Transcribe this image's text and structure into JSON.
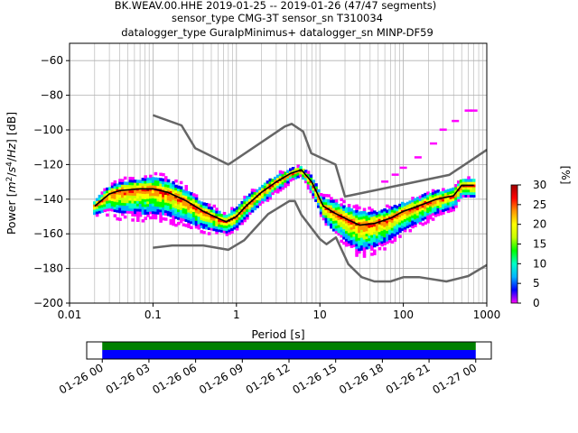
{
  "chart_data": {
    "type": "heatmap",
    "title": {
      "line1": "BK.WEAV.00.HHE   2019-01-25 -- 2019-01-26  (47/47 segments)",
      "line2": "sensor_type CMG-3T sensor_sn T310034",
      "line3": "datalogger_type GuralpMinimus+ datalogger_sn MINP-DF59"
    },
    "xlabel": "Period [s]",
    "ylabel_prefix": "Power [",
    "ylabel_suffix": "] [dB]",
    "x_scale": "log",
    "xlim": [
      0.01,
      1000
    ],
    "ylim": [
      -200,
      -50
    ],
    "x_ticks": [
      {
        "value": 0.01,
        "label": "0.01"
      },
      {
        "value": 0.1,
        "label": "0.1"
      },
      {
        "value": 1,
        "label": "1"
      },
      {
        "value": 10,
        "label": "10"
      },
      {
        "value": 100,
        "label": "100"
      },
      {
        "value": 1000,
        "label": "1000"
      }
    ],
    "y_ticks": [
      {
        "value": -60,
        "label": "−60"
      },
      {
        "value": -80,
        "label": "−80"
      },
      {
        "value": -100,
        "label": "−100"
      },
      {
        "value": -120,
        "label": "−120"
      },
      {
        "value": -140,
        "label": "−140"
      },
      {
        "value": -160,
        "label": "−160"
      },
      {
        "value": -180,
        "label": "−180"
      },
      {
        "value": -200,
        "label": "−200"
      }
    ],
    "grid": true,
    "noise_models": {
      "nhnm": [
        [
          0.1,
          -91.5
        ],
        [
          0.22,
          -97.4
        ],
        [
          0.32,
          -110.5
        ],
        [
          0.8,
          -120.0
        ],
        [
          3.8,
          -98.0
        ],
        [
          4.6,
          -96.5
        ],
        [
          6.3,
          -101.0
        ],
        [
          7.9,
          -113.5
        ],
        [
          15.4,
          -120.0
        ],
        [
          20.0,
          -138.5
        ],
        [
          354.8,
          -126.0
        ],
        [
          1000,
          -111.5
        ]
      ],
      "nlnm": [
        [
          0.1,
          -168.0
        ],
        [
          0.17,
          -166.7
        ],
        [
          0.4,
          -166.7
        ],
        [
          0.8,
          -169.2
        ],
        [
          1.24,
          -163.7
        ],
        [
          2.4,
          -148.6
        ],
        [
          4.3,
          -141.1
        ],
        [
          5.0,
          -141.1
        ],
        [
          6.0,
          -149.0
        ],
        [
          10.0,
          -163.0
        ],
        [
          12.0,
          -166.0
        ],
        [
          15.6,
          -162.1
        ],
        [
          21.9,
          -177.5
        ],
        [
          31.6,
          -185.0
        ],
        [
          45.0,
          -187.5
        ],
        [
          70.0,
          -187.5
        ],
        [
          101.0,
          -185.0
        ],
        [
          154.0,
          -185.0
        ],
        [
          328.0,
          -187.5
        ],
        [
          600.0,
          -184.4
        ],
        [
          1000,
          -178.0
        ]
      ]
    },
    "mean_curve": [
      [
        0.02,
        -144
      ],
      [
        0.03,
        -137
      ],
      [
        0.04,
        -135
      ],
      [
        0.07,
        -134
      ],
      [
        0.1,
        -134
      ],
      [
        0.15,
        -136
      ],
      [
        0.25,
        -141
      ],
      [
        0.4,
        -147
      ],
      [
        0.6,
        -151
      ],
      [
        0.75,
        -153
      ],
      [
        1.0,
        -150
      ],
      [
        1.3,
        -144
      ],
      [
        2.0,
        -136
      ],
      [
        3.0,
        -130
      ],
      [
        4.5,
        -125
      ],
      [
        6.0,
        -123
      ],
      [
        8.0,
        -130
      ],
      [
        11.0,
        -144
      ],
      [
        15.0,
        -148
      ],
      [
        22.0,
        -152
      ],
      [
        30.0,
        -155
      ],
      [
        45.0,
        -154
      ],
      [
        70.0,
        -151
      ],
      [
        100.0,
        -147
      ],
      [
        150.0,
        -144
      ],
      [
        250.0,
        -140
      ],
      [
        400.0,
        -138
      ],
      [
        500.0,
        -132
      ],
      [
        700.0,
        -132
      ]
    ],
    "density_spread": [
      [
        0.02,
        3,
        4
      ],
      [
        0.04,
        5,
        12
      ],
      [
        0.08,
        6,
        14
      ],
      [
        0.12,
        7,
        13
      ],
      [
        0.2,
        7,
        12
      ],
      [
        0.4,
        5,
        9
      ],
      [
        0.7,
        4,
        6
      ],
      [
        1.0,
        5,
        6
      ],
      [
        2.0,
        4,
        6
      ],
      [
        4.0,
        3,
        4
      ],
      [
        6.0,
        2,
        3
      ],
      [
        10.0,
        4,
        6
      ],
      [
        15.0,
        7,
        10
      ],
      [
        30.0,
        8,
        14
      ],
      [
        60.0,
        6,
        12
      ],
      [
        100.0,
        5,
        10
      ],
      [
        200.0,
        5,
        8
      ],
      [
        500.0,
        4,
        6
      ],
      [
        700.0,
        4,
        6
      ]
    ],
    "outliers": [
      [
        230.0,
        -108
      ],
      [
        300.0,
        -100
      ],
      [
        420.0,
        -95
      ],
      [
        600.0,
        -89
      ],
      [
        700.0,
        -89
      ],
      [
        150.0,
        -116
      ],
      [
        100.0,
        -122
      ],
      [
        80.0,
        -126
      ],
      [
        60.0,
        -130
      ]
    ],
    "colorbar": {
      "label": "[%]",
      "range": [
        0,
        30
      ],
      "ticks": [
        {
          "value": 0,
          "label": "0"
        },
        {
          "value": 5,
          "label": "5"
        },
        {
          "value": 10,
          "label": "10"
        },
        {
          "value": 15,
          "label": "15"
        },
        {
          "value": 20,
          "label": "20"
        },
        {
          "value": 25,
          "label": "25"
        },
        {
          "value": 30,
          "label": "30"
        }
      ],
      "colors": [
        "#ffffff",
        "#ff00ff",
        "#0000ff",
        "#00b4ff",
        "#00ffc8",
        "#00ff00",
        "#c8ff00",
        "#ffff00",
        "#ff9600",
        "#ff0000",
        "#a00000"
      ]
    },
    "timeline": {
      "range": [
        "2019-01-25 23:00",
        "2019-01-27 01:00"
      ],
      "covered": [
        "2019-01-26 00:00",
        "2019-01-27 00:00"
      ],
      "colors": {
        "top": "#008000",
        "bottom": "#0000ff"
      },
      "tick_labels": [
        "01-26 00",
        "01-26 03",
        "01-26 06",
        "01-26 09",
        "01-26 12",
        "01-26 15",
        "01-26 18",
        "01-26 21",
        "01-27 00"
      ]
    },
    "colors": {
      "noise_model": "#666666",
      "mean": "#000000"
    }
  }
}
